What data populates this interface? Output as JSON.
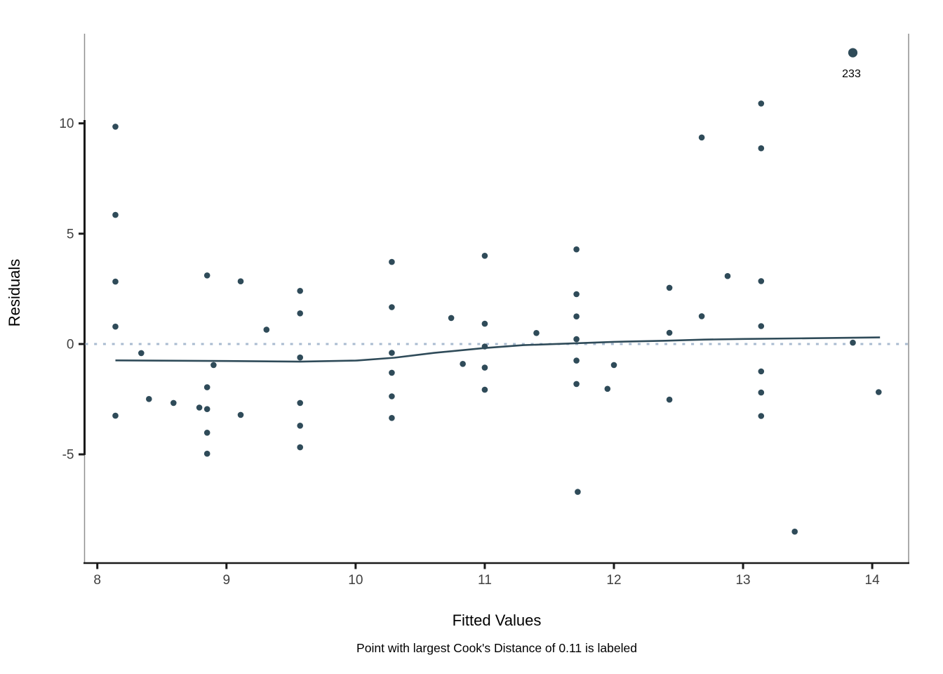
{
  "figure": {
    "y_axis_title": "Residuals",
    "x_axis_title": "Fitted Values",
    "caption": "Point with largest Cook's Distance of 0.11 is labeled"
  },
  "chart_data": {
    "type": "scatter",
    "title": "",
    "xlabel": "Fitted Values",
    "ylabel": "Residuals",
    "xlim": [
      7.9,
      14.3
    ],
    "ylim": [
      -10.0,
      14.0
    ],
    "x_ticks": [
      8,
      9,
      10,
      11,
      12,
      13,
      14
    ],
    "y_ticks": [
      10,
      5,
      0,
      -5
    ],
    "grid": false,
    "legend": "none",
    "zero_line": {
      "y": 0,
      "style": "dotted",
      "color": "#a9bbd0"
    },
    "points": [
      [
        8.14,
        9.85
      ],
      [
        8.14,
        5.85
      ],
      [
        8.14,
        2.83
      ],
      [
        8.14,
        0.79
      ],
      [
        8.14,
        -3.25
      ],
      [
        8.34,
        -0.41
      ],
      [
        8.4,
        -2.49
      ],
      [
        8.59,
        -2.67
      ],
      [
        8.79,
        -2.88
      ],
      [
        8.85,
        3.11
      ],
      [
        8.85,
        -1.96
      ],
      [
        8.85,
        -2.95
      ],
      [
        8.85,
        -4.02
      ],
      [
        8.85,
        -4.97
      ],
      [
        8.9,
        -0.95
      ],
      [
        9.11,
        2.84
      ],
      [
        9.11,
        -3.21
      ],
      [
        9.31,
        0.65
      ],
      [
        9.57,
        2.41
      ],
      [
        9.57,
        1.39
      ],
      [
        9.57,
        -0.61
      ],
      [
        9.57,
        -2.67
      ],
      [
        9.57,
        -3.7
      ],
      [
        9.57,
        -4.68
      ],
      [
        10.28,
        3.72
      ],
      [
        10.28,
        1.67
      ],
      [
        10.28,
        -0.4
      ],
      [
        10.28,
        -1.3
      ],
      [
        10.28,
        -2.37
      ],
      [
        10.28,
        -3.35
      ],
      [
        10.74,
        1.18
      ],
      [
        10.83,
        -0.9
      ],
      [
        11.0,
        4.0
      ],
      [
        11.0,
        0.92
      ],
      [
        11.0,
        -0.11
      ],
      [
        11.0,
        -1.07
      ],
      [
        11.0,
        -2.07
      ],
      [
        11.4,
        0.5
      ],
      [
        11.71,
        4.29
      ],
      [
        11.71,
        2.26
      ],
      [
        11.71,
        1.25
      ],
      [
        11.71,
        0.22
      ],
      [
        11.71,
        -0.75
      ],
      [
        11.71,
        -1.81
      ],
      [
        11.72,
        -6.7
      ],
      [
        11.95,
        -2.03
      ],
      [
        12.0,
        -0.95
      ],
      [
        12.43,
        2.55
      ],
      [
        12.43,
        0.51
      ],
      [
        12.43,
        -2.52
      ],
      [
        12.68,
        9.36
      ],
      [
        12.68,
        1.26
      ],
      [
        12.88,
        3.08
      ],
      [
        13.14,
        10.9
      ],
      [
        13.14,
        8.87
      ],
      [
        13.14,
        2.85
      ],
      [
        13.14,
        0.81
      ],
      [
        13.14,
        -1.24
      ],
      [
        13.14,
        -2.2
      ],
      [
        13.14,
        -3.26
      ],
      [
        13.4,
        -8.5
      ],
      [
        13.85,
        0.06
      ],
      [
        14.05,
        -2.18
      ]
    ],
    "labeled_point": {
      "x": 13.85,
      "y": 13.2,
      "label": "233",
      "cooks_distance": 0.11
    },
    "smoother": {
      "name": "loess-fit",
      "points": [
        [
          8.14,
          -0.74
        ],
        [
          9.0,
          -0.77
        ],
        [
          9.57,
          -0.8
        ],
        [
          10.0,
          -0.75
        ],
        [
          10.3,
          -0.62
        ],
        [
          10.61,
          -0.4
        ],
        [
          11.0,
          -0.18
        ],
        [
          11.3,
          -0.05
        ],
        [
          11.63,
          0.02
        ],
        [
          12.0,
          0.1
        ],
        [
          12.4,
          0.15
        ],
        [
          12.7,
          0.2
        ],
        [
          13.0,
          0.23
        ],
        [
          13.5,
          0.26
        ],
        [
          14.06,
          0.3
        ]
      ]
    },
    "colors": {
      "point_color": "#2f4b59",
      "smoother_color": "#2f4b59",
      "zero_line_color": "#a9bbd0",
      "axis_color": "#1a1a1a",
      "panel_border_color": "#8f8f8f",
      "tick_label_color": "#404040",
      "background": "#ffffff"
    }
  }
}
